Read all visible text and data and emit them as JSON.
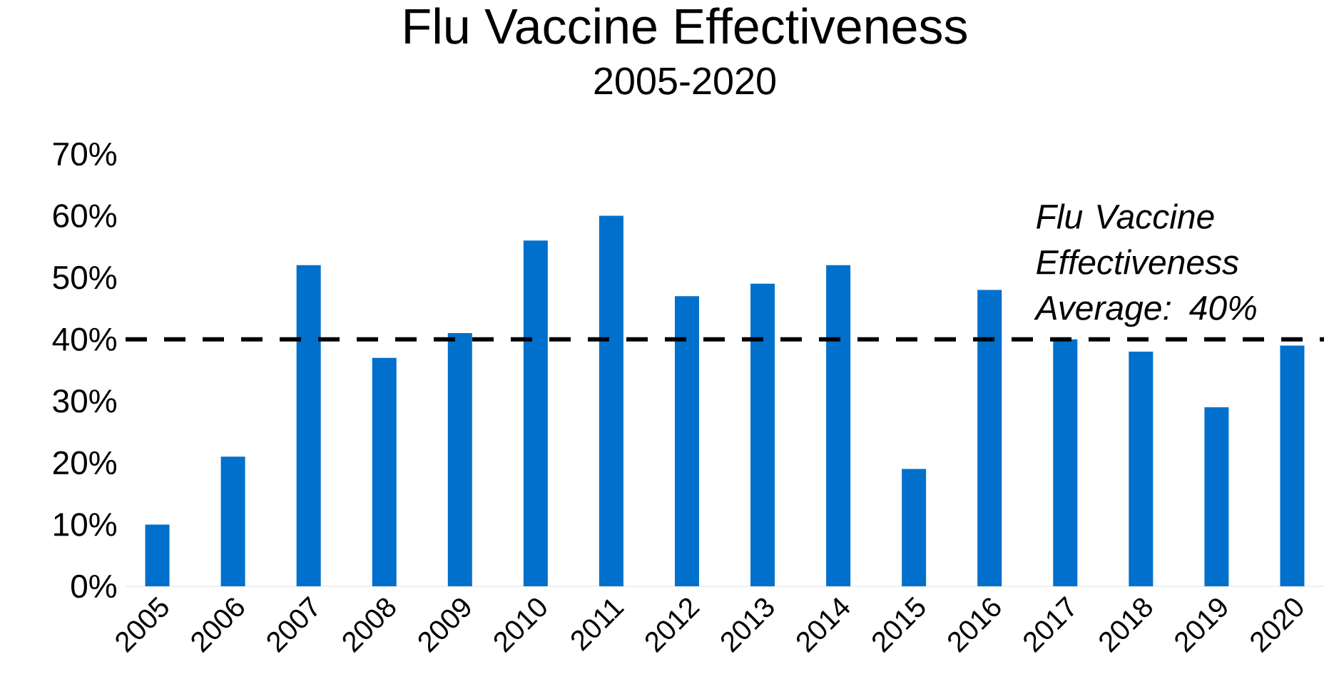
{
  "chart_data": {
    "type": "bar",
    "title": "Flu Vaccine Effectiveness",
    "subtitle": "2005-2020",
    "categories": [
      "2005",
      "2006",
      "2007",
      "2008",
      "2009",
      "2010",
      "2011",
      "2012",
      "2013",
      "2014",
      "2015",
      "2016",
      "2017",
      "2018",
      "2019",
      "2020"
    ],
    "values": [
      10,
      21,
      52,
      37,
      41,
      56,
      60,
      47,
      49,
      52,
      19,
      48,
      40,
      38,
      29,
      39
    ],
    "color": "#0070cc",
    "ylim": [
      0,
      70
    ],
    "yticks": [
      {
        "value": 0,
        "label": "0%"
      },
      {
        "value": 10,
        "label": "10%"
      },
      {
        "value": 20,
        "label": "20%"
      },
      {
        "value": 30,
        "label": "30%"
      },
      {
        "value": 40,
        "label": "40%"
      },
      {
        "value": 50,
        "label": "50%"
      },
      {
        "value": 60,
        "label": "60%"
      },
      {
        "value": 70,
        "label": "70%"
      }
    ],
    "ref_lines": [
      {
        "axis": "y",
        "value": 40,
        "label": "Flu Vaccine Effectiveness Average: 40%",
        "color": "#000000",
        "line_style": "dashed"
      }
    ],
    "grid": false
  }
}
